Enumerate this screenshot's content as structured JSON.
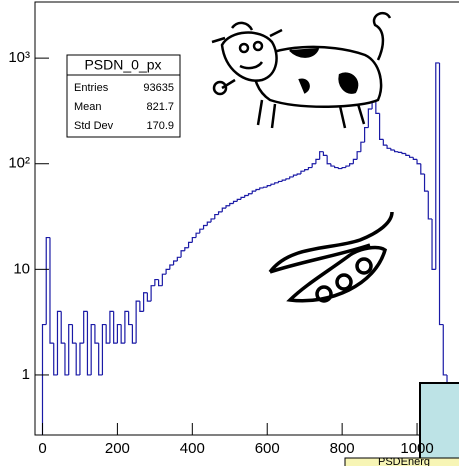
{
  "chart_data": {
    "type": "histogram",
    "log_y": true,
    "color": "#1a1aa6",
    "bins": [
      0,
      10,
      20,
      30,
      40,
      50,
      60,
      70,
      80,
      90,
      100,
      110,
      120,
      130,
      140,
      150,
      160,
      170,
      180,
      190,
      200,
      210,
      220,
      230,
      240,
      250,
      260,
      270,
      280,
      290,
      300,
      310,
      320,
      330,
      340,
      350,
      360,
      370,
      380,
      390,
      400,
      410,
      420,
      430,
      440,
      450,
      460,
      470,
      480,
      490,
      500,
      510,
      520,
      530,
      540,
      550,
      560,
      570,
      580,
      590,
      600,
      610,
      620,
      630,
      640,
      650,
      660,
      670,
      680,
      690,
      700,
      710,
      720,
      730,
      740,
      750,
      760,
      770,
      780,
      790,
      800,
      810,
      820,
      830,
      840,
      850,
      860,
      870,
      880,
      890,
      900,
      910,
      920,
      930,
      940,
      950,
      960,
      970,
      980,
      990,
      1000,
      1010,
      1020,
      1030,
      1040,
      1050,
      1060,
      1070,
      1080,
      1090,
      1100,
      1110
    ],
    "values": [
      3,
      20,
      2,
      1,
      4,
      2,
      1,
      3,
      2,
      1,
      2,
      4,
      1,
      3,
      2,
      1,
      3,
      2,
      4,
      2,
      3,
      2,
      4,
      3,
      2,
      5,
      4,
      6,
      5,
      7,
      8,
      7,
      9,
      10,
      11,
      12,
      13,
      15,
      16,
      18,
      20,
      22,
      24,
      26,
      28,
      30,
      33,
      35,
      38,
      40,
      42,
      44,
      46,
      48,
      50,
      52,
      55,
      57,
      59,
      60,
      62,
      64,
      66,
      68,
      70,
      72,
      75,
      78,
      80,
      85,
      88,
      92,
      100,
      110,
      130,
      120,
      100,
      95,
      92,
      90,
      92,
      95,
      100,
      110,
      130,
      160,
      220,
      330,
      430,
      300,
      170,
      150,
      140,
      135,
      130,
      128,
      125,
      120,
      115,
      110,
      100,
      80,
      55,
      30,
      10,
      900,
      3,
      1,
      0,
      0,
      0
    ],
    "xlim": [
      -20,
      1112
    ],
    "xticks": [
      0,
      200,
      400,
      600,
      800,
      1000
    ],
    "ylim": [
      0.27,
      3400
    ],
    "yticks": [
      {
        "value": 1000,
        "label": "10³"
      },
      {
        "value": 100,
        "label": "10²"
      },
      10,
      1
    ],
    "stats": {
      "title": "PSDN_0_px",
      "rows": [
        [
          "Entries",
          "93635"
        ],
        [
          "Mean",
          "821.7"
        ],
        [
          "Std Dev",
          "170.9"
        ]
      ]
    },
    "annotation": "PSDEnerg"
  }
}
